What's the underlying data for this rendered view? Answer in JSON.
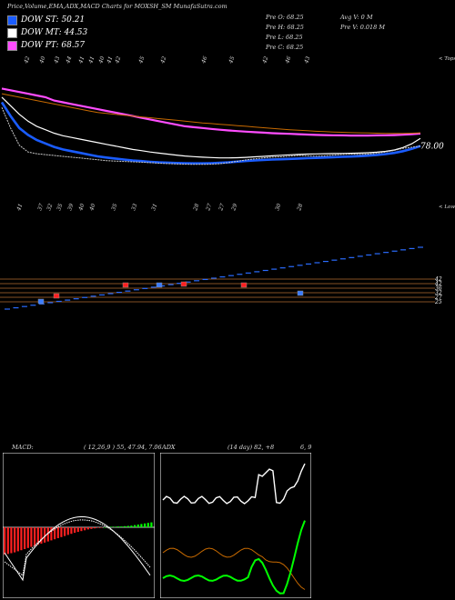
{
  "header": {
    "title": "Price,Volume,EMA,ADX,MACD Charts for MOXSH_SM MunafaSutra.com"
  },
  "legend": [
    {
      "label": "DOW ST: 50.21",
      "color": "#1a5cff"
    },
    {
      "label": "DOW MT: 44.53",
      "color": "#ffffff"
    },
    {
      "label": "DOW PT: 68.57",
      "color": "#ff4dff"
    }
  ],
  "stats": {
    "col1": [
      "Pre  O: 68.25",
      "Pre  H: 68.25",
      "Pre  L: 68.25",
      "Pre  C: 68.25"
    ],
    "col2": [
      "Avg V: 0  M",
      "Pre  V: 0.018 M"
    ]
  },
  "colors": {
    "st": "#1a5cff",
    "mt": "#ffffff",
    "pt": "#ff4dff",
    "orange": "#c86a00",
    "green": "#00ff00",
    "red": "#ff2020"
  },
  "chart_data": [
    {
      "type": "line",
      "name": "price-ema",
      "top_tick_labels": [
        "42",
        "40",
        "43",
        "44",
        "41",
        "41",
        "40",
        "41",
        "42",
        "45",
        "42",
        "46",
        "45",
        "42",
        "46",
        "43"
      ],
      "top_label": "< Tops",
      "last_value_label": "78.00",
      "x": [
        0,
        1,
        2,
        3,
        4,
        5,
        6,
        7,
        8,
        9,
        10,
        11,
        12,
        13,
        14,
        15,
        16,
        17,
        18,
        19,
        20,
        21,
        22,
        23,
        24,
        25,
        26,
        27,
        28,
        29,
        30,
        31,
        32,
        33,
        34,
        35,
        36,
        37,
        38,
        39,
        40,
        41,
        42,
        43,
        44,
        45,
        46,
        47,
        48
      ],
      "series": [
        {
          "key": "pt",
          "values": [
            103,
            102,
            101,
            100,
            99,
            98,
            96,
            95,
            94,
            93,
            92,
            91,
            90,
            89,
            88,
            87,
            86,
            85,
            84,
            83,
            82,
            81,
            80.5,
            80,
            79.5,
            79,
            78.6,
            78.2,
            77.9,
            77.6,
            77.3,
            77,
            76.8,
            76.6,
            76.4,
            76.2,
            76,
            75.9,
            75.8,
            75.7,
            75.6,
            75.6,
            75.6,
            75.7,
            75.8,
            75.9,
            76.1,
            76.4,
            76.8
          ]
        },
        {
          "key": "orange",
          "values": [
            100,
            99,
            98,
            97,
            96,
            95,
            94,
            93,
            92,
            91,
            90,
            89,
            88.5,
            88,
            87.5,
            87,
            86.5,
            86,
            85.5,
            85,
            84.5,
            84,
            83.5,
            83,
            82.6,
            82.2,
            81.8,
            81.4,
            81,
            80.6,
            80.2,
            79.8,
            79.4,
            79,
            78.7,
            78.4,
            78.1,
            77.9,
            77.7,
            77.5,
            77.3,
            77.2,
            77.1,
            77,
            76.9,
            76.9,
            76.9,
            77,
            77.2
          ]
        },
        {
          "key": "mt",
          "values": [
            98,
            93,
            88,
            84,
            81,
            79,
            77,
            75.5,
            74.5,
            73.5,
            72.5,
            71.5,
            70.5,
            69.5,
            68.5,
            67.5,
            66.8,
            66,
            65.4,
            64.8,
            64.2,
            63.7,
            63.3,
            63,
            62.8,
            62.6,
            62.6,
            62.7,
            62.9,
            63.2,
            63.5,
            63.8,
            64.1,
            64.4,
            64.6,
            64.8,
            64.9,
            65,
            65.1,
            65.2,
            65.3,
            65.4,
            65.6,
            65.9,
            66.4,
            67.2,
            68.6,
            70.8,
            74
          ]
        },
        {
          "key": "st",
          "values": [
            95,
            87,
            80,
            76,
            73,
            71,
            69,
            67.5,
            66.5,
            65.5,
            64.5,
            63.5,
            62.8,
            62.2,
            61.6,
            61.1,
            60.7,
            60.3,
            60,
            59.8,
            59.6,
            59.5,
            59.4,
            59.4,
            59.5,
            59.7,
            60,
            60.4,
            60.8,
            61.1,
            61.4,
            61.6,
            61.8,
            62,
            62.2,
            62.4,
            62.6,
            62.8,
            63,
            63.2,
            63.4,
            63.6,
            63.9,
            64.3,
            64.8,
            65.5,
            66.5,
            67.8,
            69.5
          ]
        },
        {
          "key": "price",
          "values": [
            92,
            80,
            70,
            66,
            65,
            64.5,
            64,
            63.5,
            63,
            62.5,
            62,
            61.5,
            61,
            60.7,
            60.5,
            60.3,
            60.1,
            59.8,
            59.5,
            59.3,
            59.1,
            58.9,
            58.8,
            58.8,
            58.9,
            59.2,
            59.8,
            60.6,
            61.4,
            62,
            62.6,
            63,
            63.2,
            63.6,
            64,
            63.8,
            63.6,
            63.8,
            64.2,
            64.6,
            64.8,
            64.6,
            64.8,
            65.3,
            66,
            67,
            68.2,
            68.8,
            69.5
          ]
        }
      ],
      "ylim": [
        55,
        108
      ]
    },
    {
      "type": "bar",
      "name": "volume-levels",
      "bottom_tick_labels": [
        "41",
        "37",
        "32",
        "35",
        "39",
        "40",
        "40",
        "35",
        "33",
        "31",
        "28",
        "27",
        "27",
        "29",
        "30",
        "28"
      ],
      "bottom_label": "< Lows",
      "level_labels": [
        "42",
        "42",
        "36",
        "32",
        "27",
        "25"
      ],
      "steps": [
        28,
        29,
        30,
        31,
        32,
        33,
        34,
        35,
        36,
        37,
        38,
        39,
        40,
        41,
        42,
        43,
        44,
        45,
        46,
        47,
        48,
        49,
        50,
        51,
        52,
        53,
        54,
        55,
        56,
        57,
        58,
        59,
        60,
        61,
        62,
        63,
        64,
        65,
        66,
        67,
        68,
        69,
        70,
        71,
        72,
        73,
        74,
        75,
        76
      ],
      "marked_red_index": [
        22,
        33,
        44
      ],
      "marked_blue_index": [
        8,
        27,
        35,
        54
      ]
    },
    {
      "type": "bar",
      "name": "macd",
      "title": "MACD:",
      "params": "( 12,26,9 ) 55, 47.94, 7.06",
      "histogram": [
        -1.0,
        -0.98,
        -0.95,
        -0.92,
        -0.88,
        -0.84,
        -0.8,
        -0.76,
        -0.72,
        -0.68,
        -0.64,
        -0.6,
        -0.56,
        -0.52,
        -0.48,
        -0.44,
        -0.4,
        -0.36,
        -0.32,
        -0.28,
        -0.24,
        -0.2,
        -0.17,
        -0.14,
        -0.11,
        -0.08,
        -0.06,
        -0.04,
        -0.02,
        -0.01,
        0,
        0.01,
        0.02,
        0.02,
        0.03,
        0.03,
        0.04,
        0.05,
        0.06,
        0.08,
        0.1,
        0.12,
        0.14,
        0.16,
        0.18
      ]
    },
    {
      "type": "line",
      "name": "adx",
      "title": "ADX",
      "params": "(14 day) 82, +8",
      "right_label": "6, 9"
    }
  ]
}
